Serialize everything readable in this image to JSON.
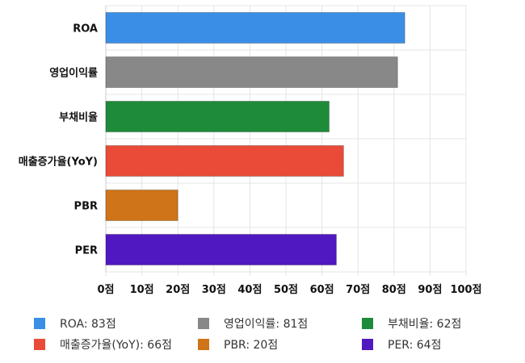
{
  "chart_data": {
    "type": "bar",
    "orientation": "horizontal",
    "categories": [
      "ROA",
      "영업이익률",
      "부채비율",
      "매출증가율(YoY)",
      "PBR",
      "PER"
    ],
    "values": [
      83,
      81,
      62,
      66,
      20,
      64
    ],
    "colors": [
      "#3a8ee6",
      "#888888",
      "#1e8b3a",
      "#e94b38",
      "#cf7418",
      "#5018c0"
    ],
    "xlim": [
      0,
      100
    ],
    "x_ticks": [
      "0점",
      "10점",
      "20점",
      "30점",
      "40점",
      "50점",
      "60점",
      "70점",
      "80점",
      "90점",
      "100점"
    ],
    "grid": true,
    "legend_position": "bottom",
    "legend_entries": [
      "ROA: 83점",
      "영업이익률: 81점",
      "부채비율: 62점",
      "매출증가율(YoY): 66점",
      "PBR: 20점",
      "PER: 64점"
    ]
  }
}
